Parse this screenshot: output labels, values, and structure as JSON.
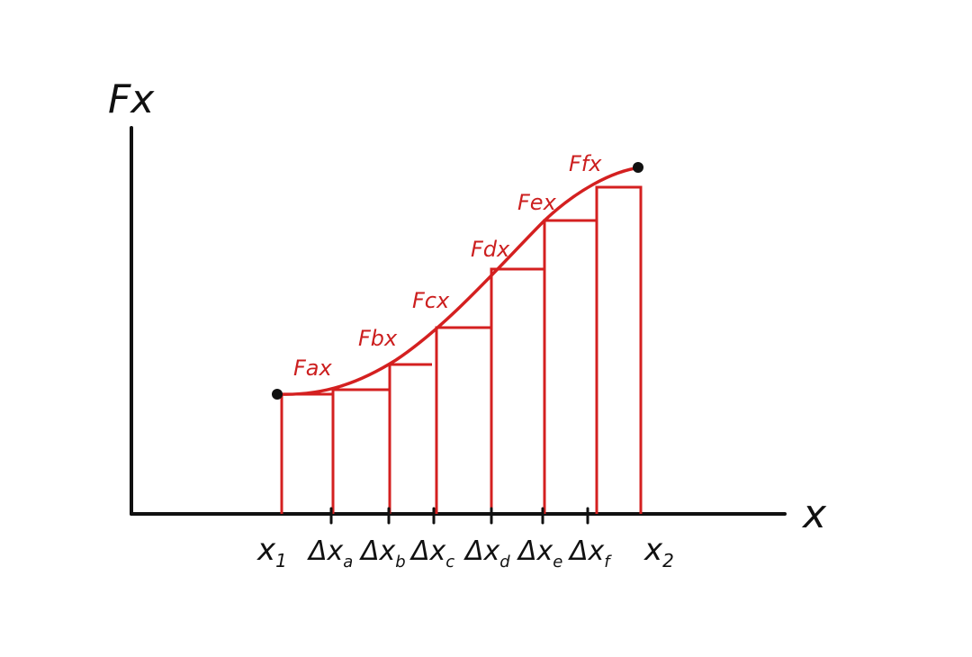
{
  "colors": {
    "axis": "#111111",
    "curve": "#d42020",
    "strips": "#d42020",
    "labels": "#111111",
    "strip_labels": "#cc1f1f",
    "endpoints": "#111111"
  },
  "axes": {
    "y_label": "Fx",
    "x_label": "x"
  },
  "x_ticks": {
    "start": "x",
    "start_sub": "1",
    "end": "x",
    "end_sub": "2",
    "deltas": [
      {
        "prefix": "Δx",
        "sub": "a"
      },
      {
        "prefix": "Δx",
        "sub": "b"
      },
      {
        "prefix": "Δx",
        "sub": "c"
      },
      {
        "prefix": "Δx",
        "sub": "d"
      },
      {
        "prefix": "Δx",
        "sub": "e"
      },
      {
        "prefix": "Δx",
        "sub": "f"
      }
    ]
  },
  "strip_labels": [
    "Fax",
    "Fbx",
    "Fcx",
    "Fdx",
    "Fex",
    "Ffx"
  ]
}
